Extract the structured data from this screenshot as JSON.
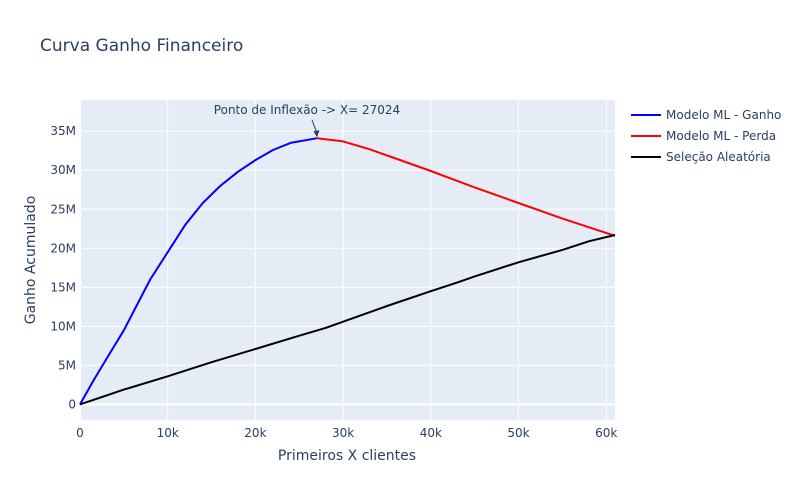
{
  "chart_data": {
    "type": "line",
    "title": "Curva Ganho Financeiro",
    "xlabel": "Primeiros X clientes",
    "ylabel": "Ganho Acumulado",
    "xlim": [
      0,
      61000
    ],
    "ylim": [
      -2000000,
      39000000
    ],
    "grid": true,
    "legend_position": "top-right-outside",
    "x_ticks": [
      0,
      10000,
      20000,
      30000,
      40000,
      50000,
      60000
    ],
    "x_tick_labels": [
      "0",
      "10k",
      "20k",
      "30k",
      "40k",
      "50k",
      "60k"
    ],
    "y_ticks": [
      0,
      5000000,
      10000000,
      15000000,
      20000000,
      25000000,
      30000000,
      35000000
    ],
    "y_tick_labels": [
      "0",
      "5M",
      "10M",
      "15M",
      "20M",
      "25M",
      "30M",
      "35M"
    ],
    "series": [
      {
        "name": "Modelo ML - Ganho",
        "color": "#0000ff",
        "x": [
          0,
          1500,
          3000,
          5000,
          8000,
          10000,
          12000,
          14000,
          16000,
          18000,
          20000,
          22000,
          24000,
          26000,
          27024
        ],
        "y": [
          0,
          3000000,
          5800000,
          9500000,
          16000000,
          19500000,
          23000000,
          25800000,
          28000000,
          29800000,
          31300000,
          32600000,
          33500000,
          33900000,
          34100000
        ]
      },
      {
        "name": "Modelo ML - Perda",
        "color": "#ff0000",
        "x": [
          27024,
          30000,
          33000,
          36000,
          40000,
          45000,
          50000,
          55000,
          61000
        ],
        "y": [
          34100000,
          33700000,
          32700000,
          31500000,
          29900000,
          27800000,
          25800000,
          23800000,
          21600000
        ]
      },
      {
        "name": "Seleção Aleatória",
        "color": "#000000",
        "x": [
          0,
          5000,
          10000,
          15000,
          20000,
          25000,
          28000,
          30000,
          35000,
          40000,
          43000,
          45000,
          50000,
          55000,
          58000,
          61000
        ],
        "y": [
          0,
          1900000,
          3600000,
          5400000,
          7100000,
          8800000,
          9800000,
          10600000,
          12600000,
          14500000,
          15600000,
          16400000,
          18200000,
          19800000,
          20900000,
          21700000
        ]
      }
    ],
    "annotations": [
      {
        "text": "Ponto de Inflexão -> X= 27024",
        "x": 27024,
        "y": 34100000
      }
    ]
  }
}
